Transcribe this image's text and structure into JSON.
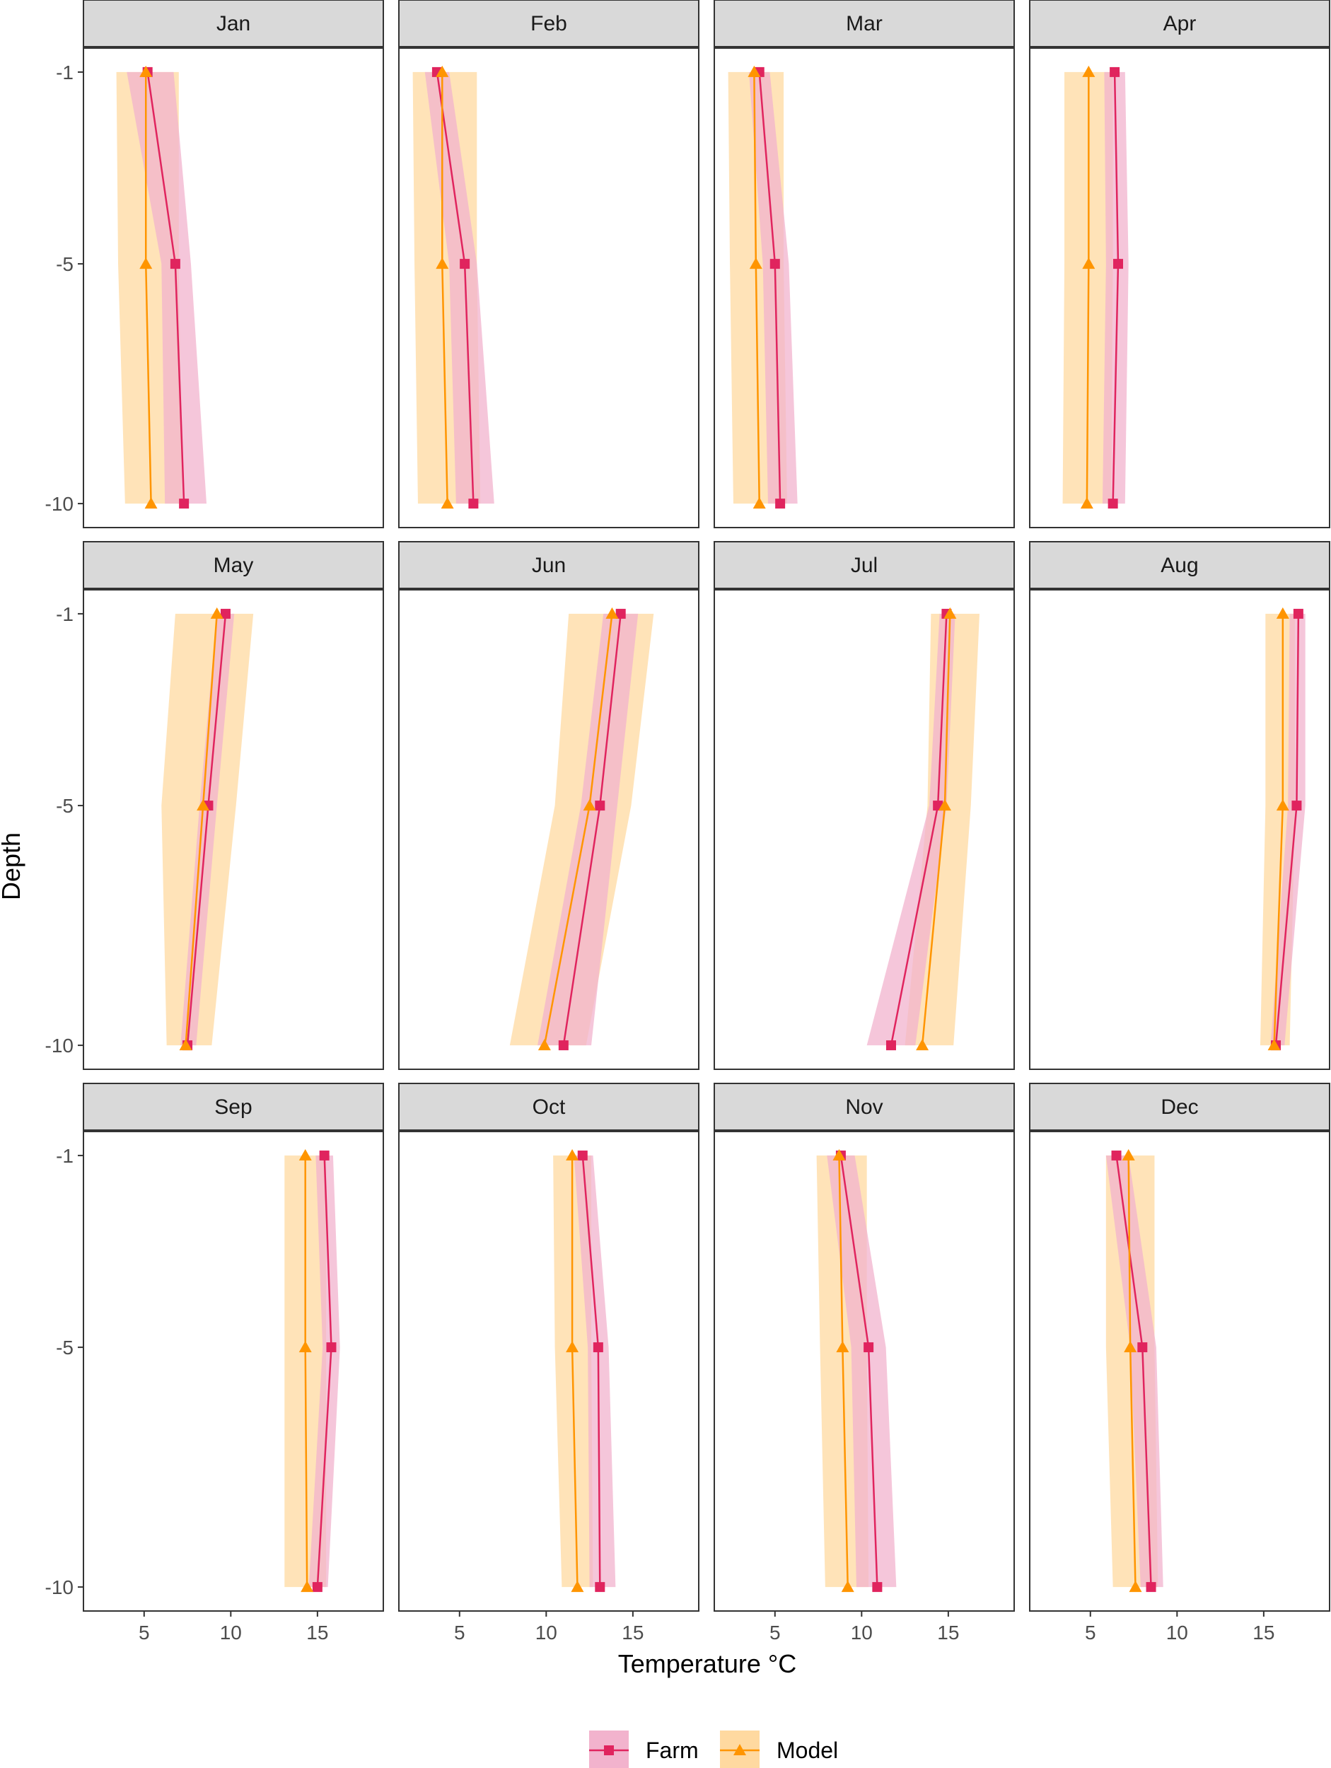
{
  "chart_data": {
    "type": "line",
    "xlabel": "Temperature °C",
    "ylabel": "Depth",
    "xlim": [
      1.5,
      18.8
    ],
    "ylim": [
      -10.5,
      -0.5
    ],
    "x_ticks": [
      5,
      10,
      15
    ],
    "y_ticks": [
      -1,
      -5,
      -10
    ],
    "depths": [
      -1,
      -5,
      -10
    ],
    "grid": false,
    "legend_position": "bottom",
    "colors": {
      "farm_line": "#e0245e",
      "farm_band": "#f2b3cd",
      "model_line": "#ff9500",
      "model_band": "#ffd9a0",
      "strip_bg": "#d9d9d9",
      "panel_border": "#333333"
    },
    "series": [
      {
        "name": "Farm",
        "marker": "square"
      },
      {
        "name": "Model",
        "marker": "triangle"
      }
    ],
    "panels": [
      {
        "month": "Jan",
        "farm": {
          "values": [
            5.2,
            6.8,
            7.3
          ],
          "lower": [
            4.0,
            6.0,
            6.2
          ],
          "upper": [
            6.7,
            7.7,
            8.6
          ]
        },
        "model": {
          "values": [
            5.1,
            5.1,
            5.4
          ],
          "lower": [
            3.4,
            3.5,
            3.9
          ],
          "upper": [
            7.0,
            7.0,
            7.2
          ]
        }
      },
      {
        "month": "Feb",
        "farm": {
          "values": [
            3.7,
            5.3,
            5.8
          ],
          "lower": [
            3.0,
            4.4,
            4.8
          ],
          "upper": [
            4.4,
            6.0,
            7.0
          ]
        },
        "model": {
          "values": [
            4.0,
            4.0,
            4.3
          ],
          "lower": [
            2.3,
            2.4,
            2.6
          ],
          "upper": [
            6.0,
            6.0,
            6.2
          ]
        }
      },
      {
        "month": "Mar",
        "farm": {
          "values": [
            4.1,
            5.0,
            5.3
          ],
          "lower": [
            3.5,
            4.3,
            4.6
          ],
          "upper": [
            4.7,
            5.8,
            6.3
          ]
        },
        "model": {
          "values": [
            3.8,
            3.9,
            4.1
          ],
          "lower": [
            2.3,
            2.4,
            2.6
          ],
          "upper": [
            5.5,
            5.5,
            5.7
          ]
        }
      },
      {
        "month": "Apr",
        "farm": {
          "values": [
            6.4,
            6.6,
            6.3
          ],
          "lower": [
            5.8,
            5.9,
            5.7
          ],
          "upper": [
            7.0,
            7.2,
            7.0
          ]
        },
        "model": {
          "values": [
            4.9,
            4.9,
            4.8
          ],
          "lower": [
            3.5,
            3.5,
            3.4
          ],
          "upper": [
            6.3,
            6.3,
            6.2
          ]
        }
      },
      {
        "month": "May",
        "farm": {
          "values": [
            9.7,
            8.7,
            7.5
          ],
          "lower": [
            9.2,
            8.2,
            7.1
          ],
          "upper": [
            10.2,
            9.2,
            8.0
          ]
        },
        "model": {
          "values": [
            9.2,
            8.4,
            7.4
          ],
          "lower": [
            6.8,
            6.0,
            6.3
          ],
          "upper": [
            11.3,
            10.3,
            8.9
          ]
        }
      },
      {
        "month": "Jun",
        "farm": {
          "values": [
            14.3,
            13.1,
            11.0
          ],
          "lower": [
            13.3,
            12.0,
            9.5
          ],
          "upper": [
            15.3,
            14.1,
            12.6
          ]
        },
        "model": {
          "values": [
            13.8,
            12.5,
            9.9
          ],
          "lower": [
            11.3,
            10.5,
            7.9
          ],
          "upper": [
            16.2,
            14.9,
            12.3
          ]
        }
      },
      {
        "month": "Jul",
        "farm": {
          "values": [
            14.9,
            14.4,
            11.7
          ],
          "lower": [
            14.5,
            13.9,
            10.3
          ],
          "upper": [
            15.4,
            14.9,
            13.1
          ]
        },
        "model": {
          "values": [
            15.1,
            14.8,
            13.5
          ],
          "lower": [
            14.0,
            13.8,
            12.5
          ],
          "upper": [
            16.8,
            16.3,
            15.3
          ]
        }
      },
      {
        "month": "Aug",
        "farm": {
          "values": [
            17.0,
            16.9,
            15.7
          ],
          "lower": [
            16.5,
            16.4,
            15.4
          ],
          "upper": [
            17.4,
            17.4,
            16.2
          ]
        },
        "model": {
          "values": [
            16.1,
            16.1,
            15.6
          ],
          "lower": [
            15.1,
            15.1,
            14.8
          ],
          "upper": [
            16.8,
            16.8,
            16.5
          ]
        }
      },
      {
        "month": "Sep",
        "farm": {
          "values": [
            15.4,
            15.8,
            15.0
          ],
          "lower": [
            14.9,
            15.3,
            14.5
          ],
          "upper": [
            15.9,
            16.3,
            15.6
          ]
        },
        "model": {
          "values": [
            14.3,
            14.3,
            14.4
          ],
          "lower": [
            13.1,
            13.1,
            13.1
          ],
          "upper": [
            15.5,
            15.5,
            15.5
          ]
        }
      },
      {
        "month": "Oct",
        "farm": {
          "values": [
            12.1,
            13.0,
            13.1
          ],
          "lower": [
            11.6,
            12.4,
            12.5
          ],
          "upper": [
            12.7,
            13.6,
            14.0
          ]
        },
        "model": {
          "values": [
            11.5,
            11.5,
            11.8
          ],
          "lower": [
            10.4,
            10.5,
            10.9
          ],
          "upper": [
            12.6,
            12.6,
            12.7
          ]
        }
      },
      {
        "month": "Nov",
        "farm": {
          "values": [
            8.8,
            10.4,
            10.9
          ],
          "lower": [
            8.0,
            9.4,
            9.7
          ],
          "upper": [
            9.6,
            11.4,
            12.0
          ]
        },
        "model": {
          "values": [
            8.7,
            8.9,
            9.2
          ],
          "lower": [
            7.4,
            7.6,
            7.9
          ],
          "upper": [
            10.3,
            10.3,
            10.4
          ]
        }
      },
      {
        "month": "Dec",
        "farm": {
          "values": [
            6.5,
            8.0,
            8.5
          ],
          "lower": [
            5.9,
            7.3,
            7.9
          ],
          "upper": [
            7.2,
            8.8,
            9.2
          ]
        },
        "model": {
          "values": [
            7.2,
            7.3,
            7.6
          ],
          "lower": [
            5.9,
            5.9,
            6.3
          ],
          "upper": [
            8.7,
            8.7,
            8.9
          ]
        }
      }
    ]
  }
}
